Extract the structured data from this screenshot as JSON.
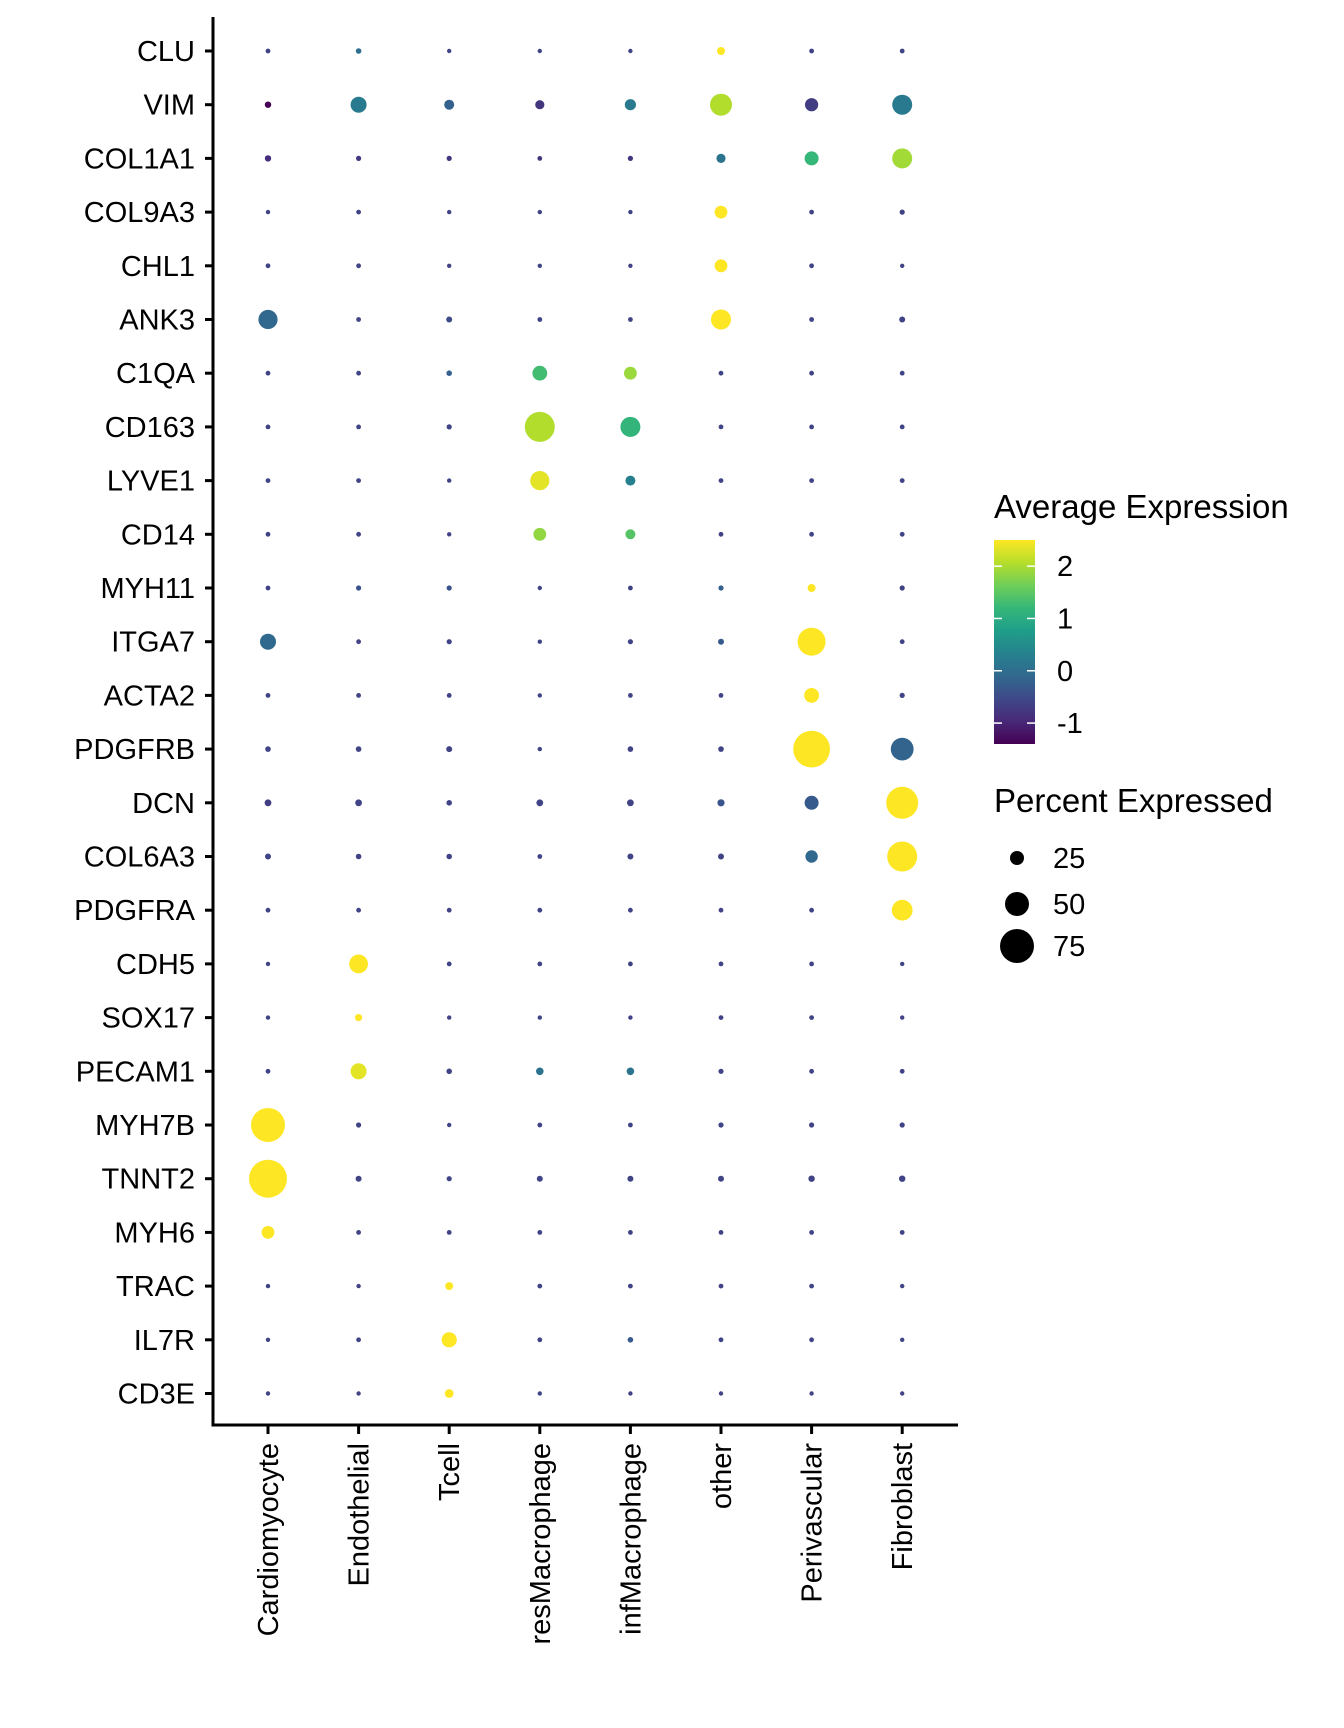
{
  "chart_data": {
    "type": "scatter",
    "subtype": "dotplot",
    "title": "",
    "xlabel": "",
    "ylabel": "",
    "categories_x": [
      "Cardiomyocyte",
      "Endothelial",
      "Tcell",
      "resMacrophage",
      "infMacrophage",
      "other",
      "Perivascular",
      "Fibroblast"
    ],
    "categories_y": [
      "CLU",
      "VIM",
      "COL1A1",
      "COL9A3",
      "CHL1",
      "ANK3",
      "C1QA",
      "CD163",
      "LYVE1",
      "CD14",
      "MYH11",
      "ITGA7",
      "ACTA2",
      "PDGFRB",
      "DCN",
      "COL6A3",
      "PDGFRA",
      "CDH5",
      "SOX17",
      "PECAM1",
      "MYH7B",
      "TNNT2",
      "MYH6",
      "TRAC",
      "IL7R",
      "CD3E"
    ],
    "series": [
      {
        "name": "Average Expression",
        "note": "rows follow categories_y, columns follow categories_x",
        "values": [
          [
            -0.6,
            0.0,
            -0.6,
            -0.6,
            -0.6,
            2.5,
            -0.6,
            -0.6
          ],
          [
            -1.4,
            0.2,
            -0.2,
            -0.8,
            0.2,
            2.05,
            -0.7,
            0.2
          ],
          [
            -0.9,
            -0.8,
            -0.8,
            -0.8,
            -0.8,
            0.1,
            1.2,
            1.95
          ],
          [
            -0.6,
            -0.6,
            -0.6,
            -0.6,
            -0.6,
            2.5,
            -0.6,
            -0.6
          ],
          [
            -0.6,
            -0.6,
            -0.6,
            -0.6,
            -0.6,
            2.5,
            -0.6,
            -0.6
          ],
          [
            -0.1,
            -0.6,
            -0.5,
            -0.6,
            -0.6,
            2.5,
            -0.6,
            -0.6
          ],
          [
            -0.6,
            -0.6,
            -0.2,
            1.3,
            1.9,
            -0.6,
            -0.6,
            -0.6
          ],
          [
            -0.6,
            -0.6,
            -0.6,
            2.05,
            1.15,
            -0.6,
            -0.6,
            -0.6
          ],
          [
            -0.6,
            -0.6,
            -0.6,
            2.35,
            0.3,
            -0.6,
            -0.6,
            -0.6
          ],
          [
            -0.6,
            -0.6,
            -0.6,
            1.85,
            1.45,
            -0.6,
            -0.6,
            -0.6
          ],
          [
            -0.6,
            -0.4,
            -0.4,
            -0.6,
            -0.6,
            -0.2,
            2.5,
            -0.6
          ],
          [
            -0.1,
            -0.6,
            -0.6,
            -0.6,
            -0.6,
            -0.3,
            2.5,
            -0.6
          ],
          [
            -0.6,
            -0.6,
            -0.6,
            -0.6,
            -0.6,
            -0.6,
            2.5,
            -0.6
          ],
          [
            -0.6,
            -0.6,
            -0.6,
            -0.6,
            -0.6,
            -0.6,
            2.5,
            -0.15
          ],
          [
            -0.7,
            -0.6,
            -0.6,
            -0.6,
            -0.6,
            -0.4,
            -0.3,
            2.5
          ],
          [
            -0.6,
            -0.6,
            -0.6,
            -0.6,
            -0.6,
            -0.6,
            -0.1,
            2.5
          ],
          [
            -0.6,
            -0.6,
            -0.6,
            -0.6,
            -0.6,
            -0.6,
            -0.6,
            2.5
          ],
          [
            -0.6,
            2.5,
            -0.6,
            -0.6,
            -0.6,
            -0.6,
            -0.6,
            -0.6
          ],
          [
            -0.6,
            2.5,
            -0.6,
            -0.6,
            -0.6,
            -0.6,
            -0.6,
            -0.6
          ],
          [
            -0.6,
            2.35,
            -0.6,
            0.1,
            0.1,
            -0.6,
            -0.6,
            -0.6
          ],
          [
            2.5,
            -0.6,
            -0.6,
            -0.6,
            -0.6,
            -0.6,
            -0.6,
            -0.6
          ],
          [
            2.5,
            -0.6,
            -0.6,
            -0.6,
            -0.6,
            -0.6,
            -0.6,
            -0.6
          ],
          [
            2.5,
            -0.6,
            -0.6,
            -0.6,
            -0.6,
            -0.6,
            -0.6,
            -0.6
          ],
          [
            -0.6,
            -0.6,
            2.5,
            -0.6,
            -0.6,
            -0.6,
            -0.6,
            -0.6
          ],
          [
            -0.6,
            -0.6,
            2.5,
            -0.6,
            -0.3,
            -0.6,
            -0.6,
            -0.6
          ],
          [
            -0.6,
            -0.6,
            2.5,
            -0.6,
            -0.6,
            -0.6,
            -0.6,
            -0.6
          ]
        ]
      },
      {
        "name": "Percent Expressed",
        "values": [
          [
            2,
            4,
            1,
            1,
            1,
            10,
            2,
            2
          ],
          [
            6,
            30,
            15,
            13,
            18,
            45,
            23,
            40
          ],
          [
            6,
            3,
            3,
            2,
            3,
            13,
            25,
            40
          ],
          [
            1,
            2,
            1,
            1,
            1,
            22,
            2,
            3
          ],
          [
            2,
            2,
            1,
            1,
            1,
            22,
            2,
            1
          ],
          [
            38,
            2,
            5,
            2,
            2,
            40,
            2,
            5
          ],
          [
            2,
            2,
            4,
            27,
            22,
            2,
            2,
            2
          ],
          [
            2,
            2,
            3,
            65,
            40,
            2,
            2,
            2
          ],
          [
            2,
            2,
            1,
            38,
            15,
            2,
            2,
            2
          ],
          [
            2,
            2,
            1,
            22,
            15,
            2,
            2,
            2
          ],
          [
            2,
            3,
            3,
            1,
            2,
            3,
            10,
            3
          ],
          [
            30,
            2,
            3,
            1,
            3,
            5,
            60,
            2
          ],
          [
            2,
            2,
            2,
            1,
            2,
            2,
            27,
            3
          ],
          [
            4,
            4,
            5,
            1,
            4,
            4,
            82,
            47
          ],
          [
            7,
            7,
            4,
            7,
            7,
            8,
            25,
            70
          ],
          [
            5,
            4,
            4,
            2,
            5,
            5,
            21,
            65
          ],
          [
            2,
            2,
            2,
            2,
            2,
            2,
            2,
            42
          ],
          [
            1,
            37,
            2,
            2,
            2,
            2,
            2,
            1
          ],
          [
            1,
            8,
            1,
            1,
            1,
            2,
            2,
            1
          ],
          [
            2,
            30,
            4,
            9,
            9,
            3,
            2,
            2
          ],
          [
            75,
            3,
            1,
            2,
            2,
            3,
            3,
            3
          ],
          [
            85,
            5,
            3,
            5,
            5,
            5,
            6,
            6
          ],
          [
            22,
            2,
            2,
            2,
            2,
            2,
            2,
            2
          ],
          [
            1,
            1,
            10,
            2,
            2,
            2,
            2,
            1
          ],
          [
            1,
            2,
            28,
            2,
            4,
            2,
            2,
            1
          ],
          [
            1,
            1,
            12,
            1,
            1,
            1,
            1,
            1
          ]
        ]
      }
    ],
    "color_legend": {
      "title": "Average Expression",
      "ticks": [
        2,
        1,
        0,
        -1
      ],
      "tick_labels": [
        "2",
        "1",
        "0",
        "-1"
      ],
      "range": [
        -1.4,
        2.5
      ],
      "palette": "viridis",
      "stops": [
        "#440154",
        "#482878",
        "#3e4989",
        "#31688e",
        "#26828e",
        "#1f9e89",
        "#35b779",
        "#6ece58",
        "#b5de2b",
        "#fde725"
      ]
    },
    "size_legend": {
      "title": "Percent Expressed",
      "values": [
        25,
        50,
        75
      ],
      "labels": [
        "25",
        "50",
        "75"
      ]
    },
    "legend_position": "right",
    "grid": false
  }
}
